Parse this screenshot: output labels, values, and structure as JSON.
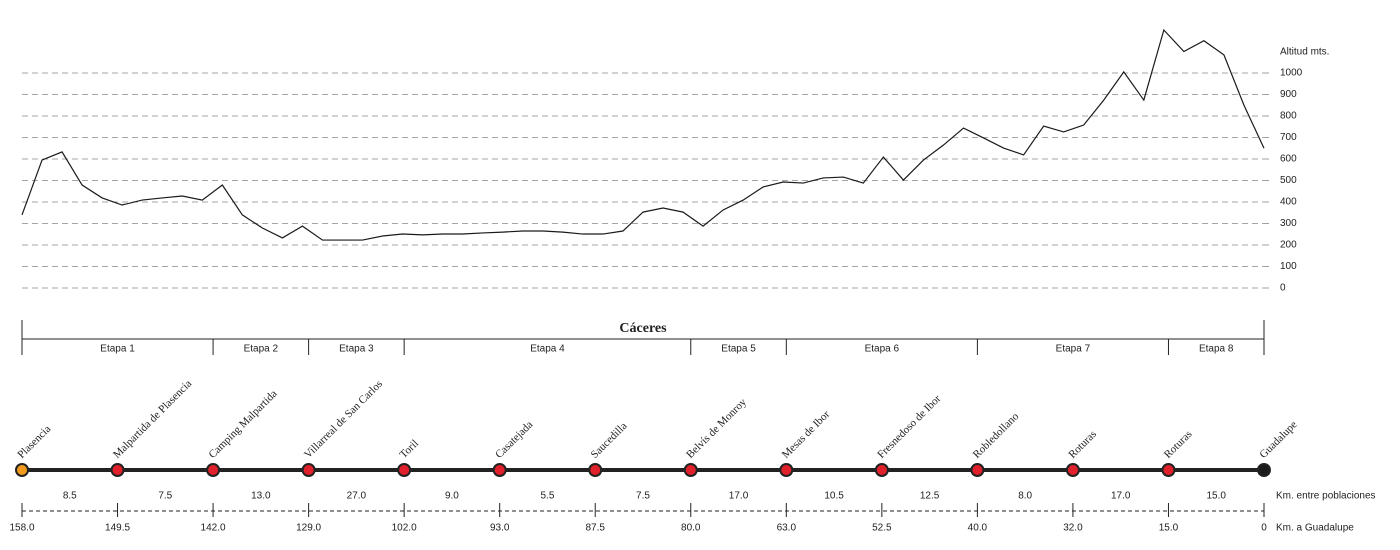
{
  "chart_data": {
    "type": "line",
    "y_label": "Altitud mts.",
    "color": "#1a1a1a",
    "values": [
      340,
      595,
      633,
      479,
      419,
      386,
      409,
      419,
      428,
      409,
      479,
      340,
      279,
      233,
      288,
      223,
      223,
      223,
      242,
      251,
      247,
      251,
      251,
      256,
      260,
      265,
      265,
      260,
      251,
      251,
      265,
      353,
      372,
      353,
      288,
      363,
      409,
      470,
      493,
      488,
      512,
      516,
      488,
      609,
      502,
      595,
      665,
      744,
      698,
      651,
      619,
      753,
      726,
      758,
      874,
      1005,
      874,
      1200,
      1100,
      1150,
      1084,
      850,
      650
    ],
    "ylim": [
      0,
      1250
    ],
    "yticks": [
      0,
      100,
      200,
      300,
      400,
      500,
      600,
      700,
      800,
      900,
      1000
    ],
    "grid": true
  },
  "region": "Cáceres",
  "stages": [
    {
      "name": "Etapa 1",
      "start": 0,
      "end": 2
    },
    {
      "name": "Etapa 2",
      "start": 2,
      "end": 3
    },
    {
      "name": "Etapa 3",
      "start": 3,
      "end": 4
    },
    {
      "name": "Etapa 4",
      "start": 4,
      "end": 7
    },
    {
      "name": "Etapa 5",
      "start": 7,
      "end": 8
    },
    {
      "name": "Etapa 6",
      "start": 8,
      "end": 10
    },
    {
      "name": "Etapa 7",
      "start": 10,
      "end": 12
    },
    {
      "name": "Etapa 8",
      "start": 12,
      "end": 13
    }
  ],
  "route": {
    "towns": [
      {
        "name": "Plasencia",
        "color": "#f39a1e"
      },
      {
        "name": "Malpartida de Plasencia",
        "color": "#e0202a"
      },
      {
        "name": "Camping Malpartida",
        "color": "#e0202a"
      },
      {
        "name": "Villarreal de San Carlos",
        "color": "#e0202a"
      },
      {
        "name": "Toril",
        "color": "#e0202a"
      },
      {
        "name": "Casatejada",
        "color": "#e0202a"
      },
      {
        "name": "Saucedilla",
        "color": "#e0202a"
      },
      {
        "name": "Belvís de Monroy",
        "color": "#e0202a"
      },
      {
        "name": "Mesas de Ibor",
        "color": "#e0202a"
      },
      {
        "name": "Fresnedoso de Ibor",
        "color": "#e0202a"
      },
      {
        "name": "Robledollano",
        "color": "#e0202a"
      },
      {
        "name": "Roturas",
        "color": "#e0202a"
      },
      {
        "name": "Roturas",
        "color": "#e0202a"
      },
      {
        "name": "Guadalupe",
        "color": "#1a1a1a"
      }
    ],
    "segment_label": "Km. entre poblaciones",
    "segments": [
      8.5,
      7.5,
      {
        "value": 13,
        "label": "13.0"
      },
      {
        "value": 27,
        "label": "27.0"
      },
      {
        "value": 9,
        "label": "9.0"
      },
      5.5,
      7.5,
      {
        "value": 17,
        "label": "17.0"
      },
      10.5,
      12.5,
      {
        "value": 8,
        "label": "8.0"
      },
      {
        "value": 17,
        "label": "17.0"
      },
      {
        "value": 15,
        "label": "15.0"
      }
    ],
    "remaining_label": "Km. a Guadalupe",
    "remaining": [
      {
        "value": 158,
        "label": "158.0"
      },
      149.5,
      {
        "value": 142,
        "label": "142.0"
      },
      {
        "value": 129,
        "label": "129.0"
      },
      {
        "value": 102,
        "label": "102.0"
      },
      {
        "value": 93,
        "label": "93.0"
      },
      87.5,
      {
        "value": 80,
        "label": "80.0"
      },
      {
        "value": 63,
        "label": "63.0"
      },
      52.5,
      {
        "value": 40,
        "label": "40.0"
      },
      {
        "value": 32,
        "label": "32.0"
      },
      {
        "value": 15,
        "label": "15.0"
      },
      0
    ]
  }
}
